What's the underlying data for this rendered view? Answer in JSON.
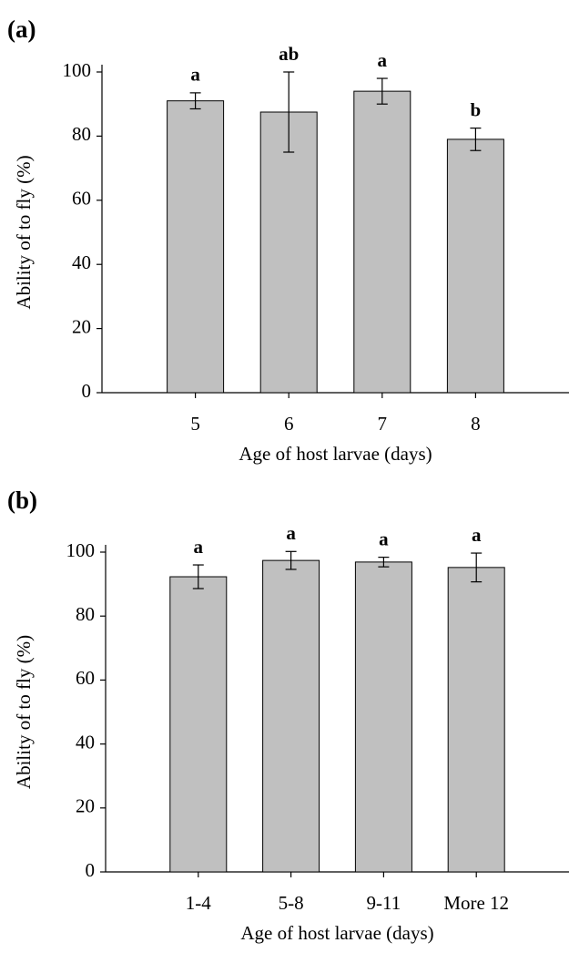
{
  "chart_data": [
    {
      "type": "bar",
      "title": "(a)",
      "xlabel": "Age of host larvae (days)",
      "ylabel": "Ability of to fly (%)",
      "categories": [
        "5",
        "6",
        "7",
        "8"
      ],
      "values": [
        91,
        87.5,
        94,
        79
      ],
      "errors": [
        2.5,
        12.5,
        4,
        3.5
      ],
      "annotations": [
        "a",
        "ab",
        "a",
        "b"
      ],
      "color": "#c0c0c0",
      "ylim": [
        0,
        100
      ],
      "yticks": [
        0,
        20,
        40,
        60,
        80,
        100
      ]
    },
    {
      "type": "bar",
      "title": "(b)",
      "xlabel": "Age of host larvae (days)",
      "ylabel": "Ability of to fly (%)",
      "categories": [
        "1-4",
        "5-8",
        "9-11",
        "More 12"
      ],
      "values": [
        92.3,
        97.4,
        96.9,
        95.2
      ],
      "errors": [
        3.7,
        2.8,
        1.5,
        4.5
      ],
      "annotations": [
        "a",
        "a",
        "a",
        "a"
      ],
      "color": "#c0c0c0",
      "ylim": [
        0,
        100
      ],
      "yticks": [
        0,
        20,
        40,
        60,
        80,
        100
      ]
    }
  ]
}
